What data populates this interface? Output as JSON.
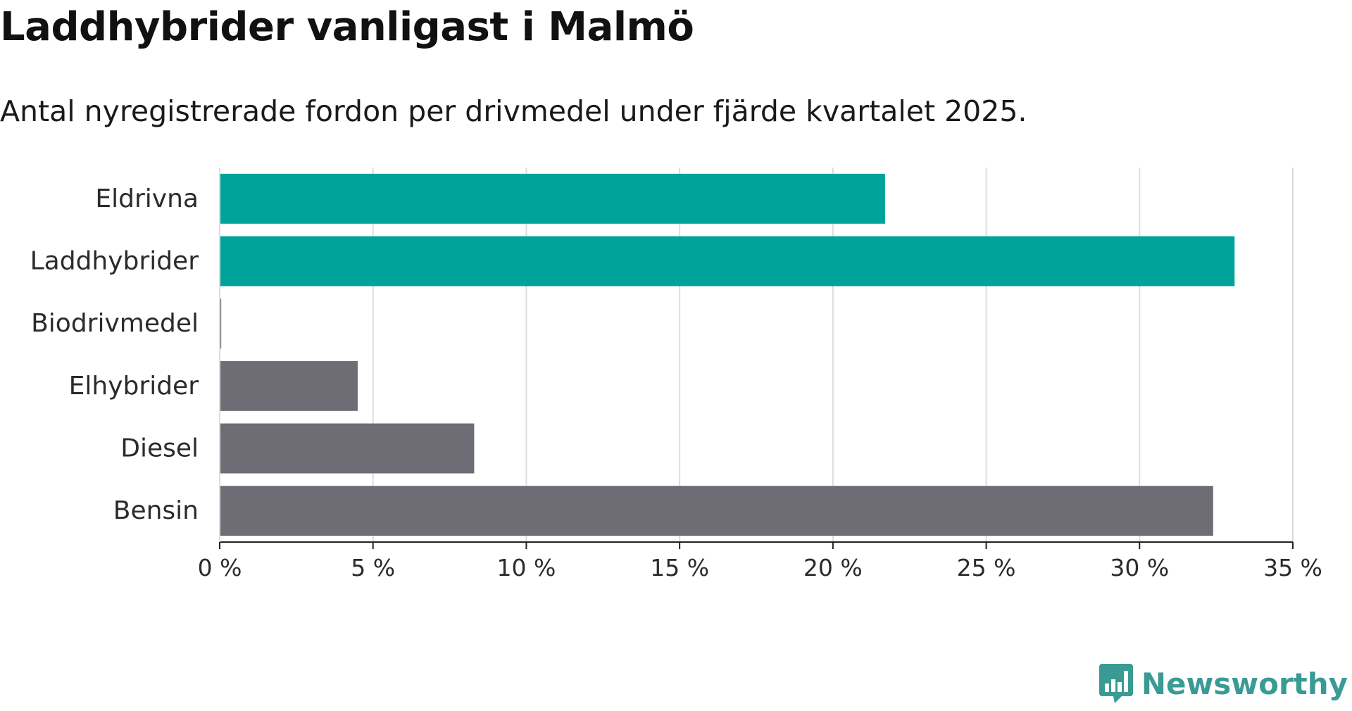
{
  "header": {
    "title": "Laddhybrider vanligast i Malmö",
    "subtitle": "Antal nyregistrerade fordon per drivmedel under fjärde kvartalet 2025."
  },
  "colors": {
    "highlight": "#00a39a",
    "base": "#6e6d75",
    "grid": "#dddddd",
    "axis": "#222222",
    "brand": "#3a9b94"
  },
  "branding": {
    "name": "Newsworthy",
    "icon": "newsworthy-logo-icon"
  },
  "chart_data": {
    "type": "bar",
    "orientation": "horizontal",
    "title": "Laddhybrider vanligast i Malmö",
    "subtitle": "Antal nyregistrerade fordon per drivmedel under fjärde kvartalet 2025.",
    "xlabel": "",
    "ylabel": "",
    "xlim": [
      0,
      35
    ],
    "categories": [
      "Eldrivna",
      "Laddhybrider",
      "Biodrivmedel",
      "Elhybrider",
      "Diesel",
      "Bensin"
    ],
    "values": [
      21.7,
      33.1,
      0.05,
      4.5,
      8.3,
      32.4
    ],
    "highlighted": [
      true,
      true,
      false,
      false,
      false,
      false
    ],
    "unit": "%",
    "ticks": [
      {
        "value": 0,
        "label": "0 %"
      },
      {
        "value": 5,
        "label": "5 %"
      },
      {
        "value": 10,
        "label": "10 %"
      },
      {
        "value": 15,
        "label": "15 %"
      },
      {
        "value": 20,
        "label": "20 %"
      },
      {
        "value": 25,
        "label": "25 %"
      },
      {
        "value": 30,
        "label": "30 %"
      },
      {
        "value": 35,
        "label": "35 %"
      }
    ],
    "grid": true,
    "legend": "none"
  }
}
